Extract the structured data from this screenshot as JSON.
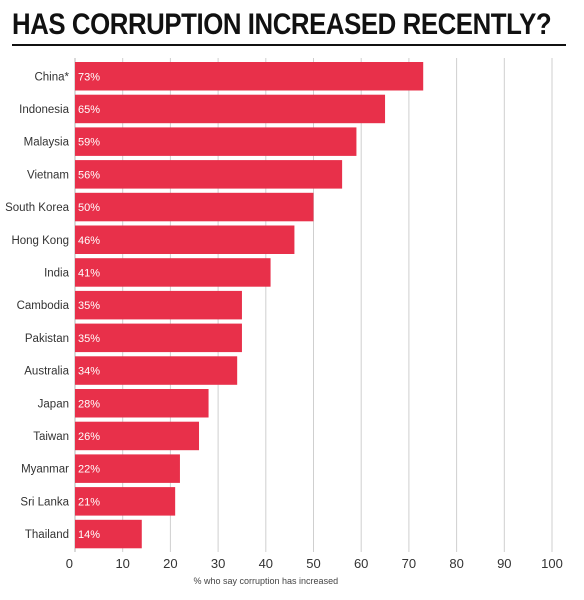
{
  "chart_data": {
    "type": "bar",
    "orientation": "horizontal",
    "title": "HAS CORRUPTION INCREASED RECENTLY?",
    "xlabel": "% who say corruption has increased",
    "ylabel": "",
    "xlim": [
      0,
      100
    ],
    "grid": true,
    "bar_color": "#e8304a",
    "categories": [
      "China*",
      "Indonesia",
      "Malaysia",
      "Vietnam",
      "South Korea",
      "Hong Kong",
      "India",
      "Cambodia",
      "Pakistan",
      "Australia",
      "Japan",
      "Taiwan",
      "Myanmar",
      "Sri Lanka",
      "Thailand"
    ],
    "values": [
      73,
      65,
      59,
      56,
      50,
      46,
      41,
      35,
      35,
      34,
      28,
      26,
      22,
      21,
      14
    ],
    "value_labels": [
      "73%",
      "65%",
      "59%",
      "56%",
      "50%",
      "46%",
      "41%",
      "35%",
      "35%",
      "34%",
      "28%",
      "26%",
      "22%",
      "21%",
      "14%"
    ],
    "x_ticks": [
      "0",
      "10",
      "20",
      "30",
      "40",
      "50",
      "60",
      "70",
      "80",
      "90",
      "100"
    ]
  }
}
